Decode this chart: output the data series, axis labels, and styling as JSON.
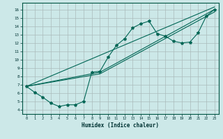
{
  "xlabel": "Humidex (Indice chaleur)",
  "bg_color": "#cce8e8",
  "grid_color": "#aabbbb",
  "line_color": "#006655",
  "x_ticks": [
    0,
    1,
    2,
    3,
    4,
    5,
    6,
    7,
    8,
    9,
    10,
    11,
    12,
    13,
    14,
    15,
    16,
    17,
    18,
    19,
    20,
    21,
    22,
    23
  ],
  "y_ticks": [
    4,
    5,
    6,
    7,
    8,
    9,
    10,
    11,
    12,
    13,
    14,
    15,
    16
  ],
  "xlim": [
    -0.5,
    23.5
  ],
  "ylim": [
    3.5,
    16.8
  ],
  "main_x": [
    0,
    1,
    2,
    3,
    4,
    5,
    6,
    7,
    8,
    9,
    10,
    11,
    12,
    13,
    14,
    15,
    16,
    17,
    18,
    19,
    20,
    21,
    22,
    23
  ],
  "main_y": [
    6.8,
    6.1,
    5.5,
    4.8,
    4.4,
    4.6,
    4.6,
    5.0,
    8.5,
    8.6,
    10.3,
    11.7,
    12.5,
    13.8,
    14.3,
    14.6,
    13.1,
    12.8,
    12.2,
    12.0,
    12.1,
    13.2,
    15.2,
    16.0
  ],
  "trend1_x": [
    0,
    23
  ],
  "trend1_y": [
    6.8,
    16.3
  ],
  "trend2_x": [
    0,
    9,
    23
  ],
  "trend2_y": [
    6.8,
    8.5,
    16.0
  ],
  "trend3_x": [
    0,
    9,
    23
  ],
  "trend3_y": [
    6.8,
    8.3,
    15.7
  ]
}
